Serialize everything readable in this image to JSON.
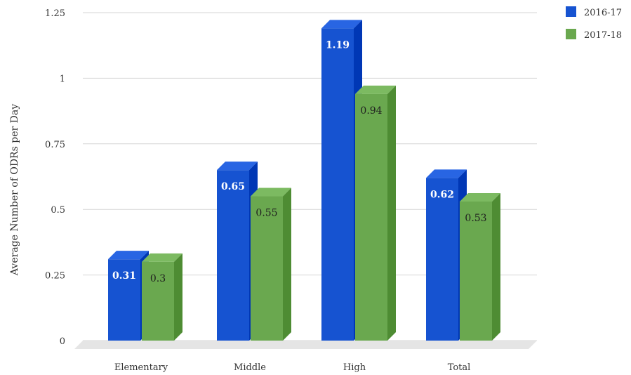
{
  "chart_data": {
    "type": "bar",
    "title": "",
    "xlabel": "",
    "ylabel": "Average Number of ODRs per Day",
    "categories": [
      "Elementary",
      "Middle",
      "High",
      "Total"
    ],
    "series": [
      {
        "name": "2016-17",
        "color": "#1653d1",
        "values": [
          0.31,
          0.65,
          1.19,
          0.62
        ],
        "labels": [
          "0.31",
          "0.65",
          "1.19",
          "0.62"
        ]
      },
      {
        "name": "2017-18",
        "color": "#6aa84f",
        "values": [
          0.3,
          0.55,
          0.94,
          0.53
        ],
        "labels": [
          "0.3",
          "0.55",
          "0.94",
          "0.53"
        ]
      }
    ],
    "yticks": [
      "0",
      "0.25",
      "0.5",
      "0.75",
      "1",
      "1.25"
    ],
    "ylim": [
      0,
      1.25
    ],
    "grid": true,
    "legend_position": "top-right",
    "style": "3d-bar"
  }
}
